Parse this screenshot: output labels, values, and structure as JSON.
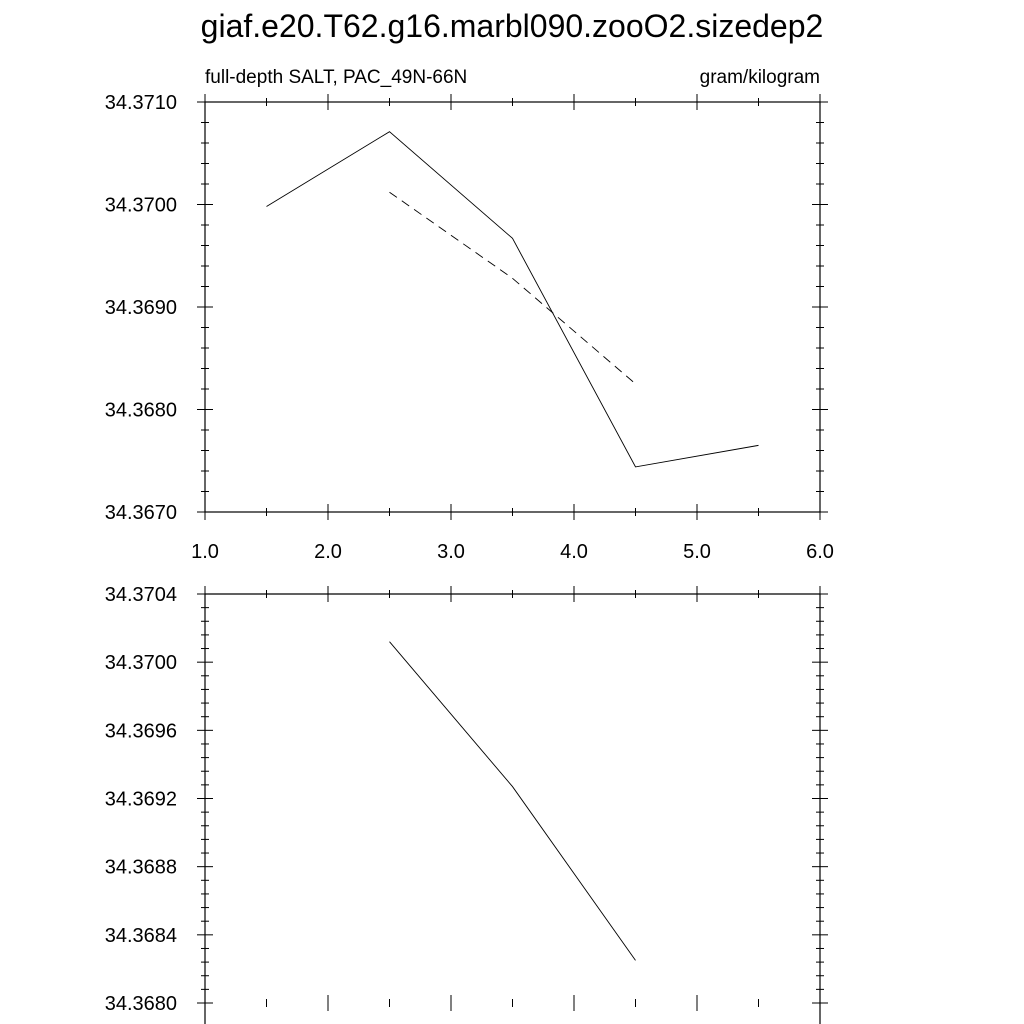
{
  "title": "giaf.e20.T62.g16.marbl090.zooO2.sizedep2",
  "chart_data": [
    {
      "type": "line",
      "left_string": "full-depth SALT, PAC_49N-66N",
      "right_string": "gram/kilogram",
      "xlim": [
        1.0,
        6.0
      ],
      "ylim": [
        34.367,
        34.371
      ],
      "x_tick_labels": [
        "1.0",
        "2.0",
        "3.0",
        "4.0",
        "5.0",
        "6.0"
      ],
      "y_tick_labels": [
        "34.3670",
        "34.3680",
        "34.3690",
        "34.3700",
        "34.3710"
      ],
      "series": [
        {
          "style": "solid",
          "x": [
            1.5,
            2.5,
            3.5,
            4.5,
            5.5
          ],
          "y": [
            34.36998,
            34.37071,
            34.36967,
            34.36744,
            34.36765
          ]
        },
        {
          "style": "dashed",
          "x": [
            2.5,
            3.5,
            4.5
          ],
          "y": [
            34.37012,
            34.36928,
            34.36825
          ]
        }
      ],
      "grid": false
    },
    {
      "type": "line",
      "xlim": [
        1.0,
        6.0
      ],
      "ylim": [
        34.368,
        34.3704
      ],
      "y_tick_labels": [
        "34.3680",
        "34.3684",
        "34.3688",
        "34.3692",
        "34.3696",
        "34.3700",
        "34.3704"
      ],
      "series": [
        {
          "style": "solid",
          "x": [
            2.5,
            3.5,
            4.5
          ],
          "y": [
            34.37012,
            34.36927,
            34.36825
          ]
        }
      ],
      "grid": false
    }
  ]
}
